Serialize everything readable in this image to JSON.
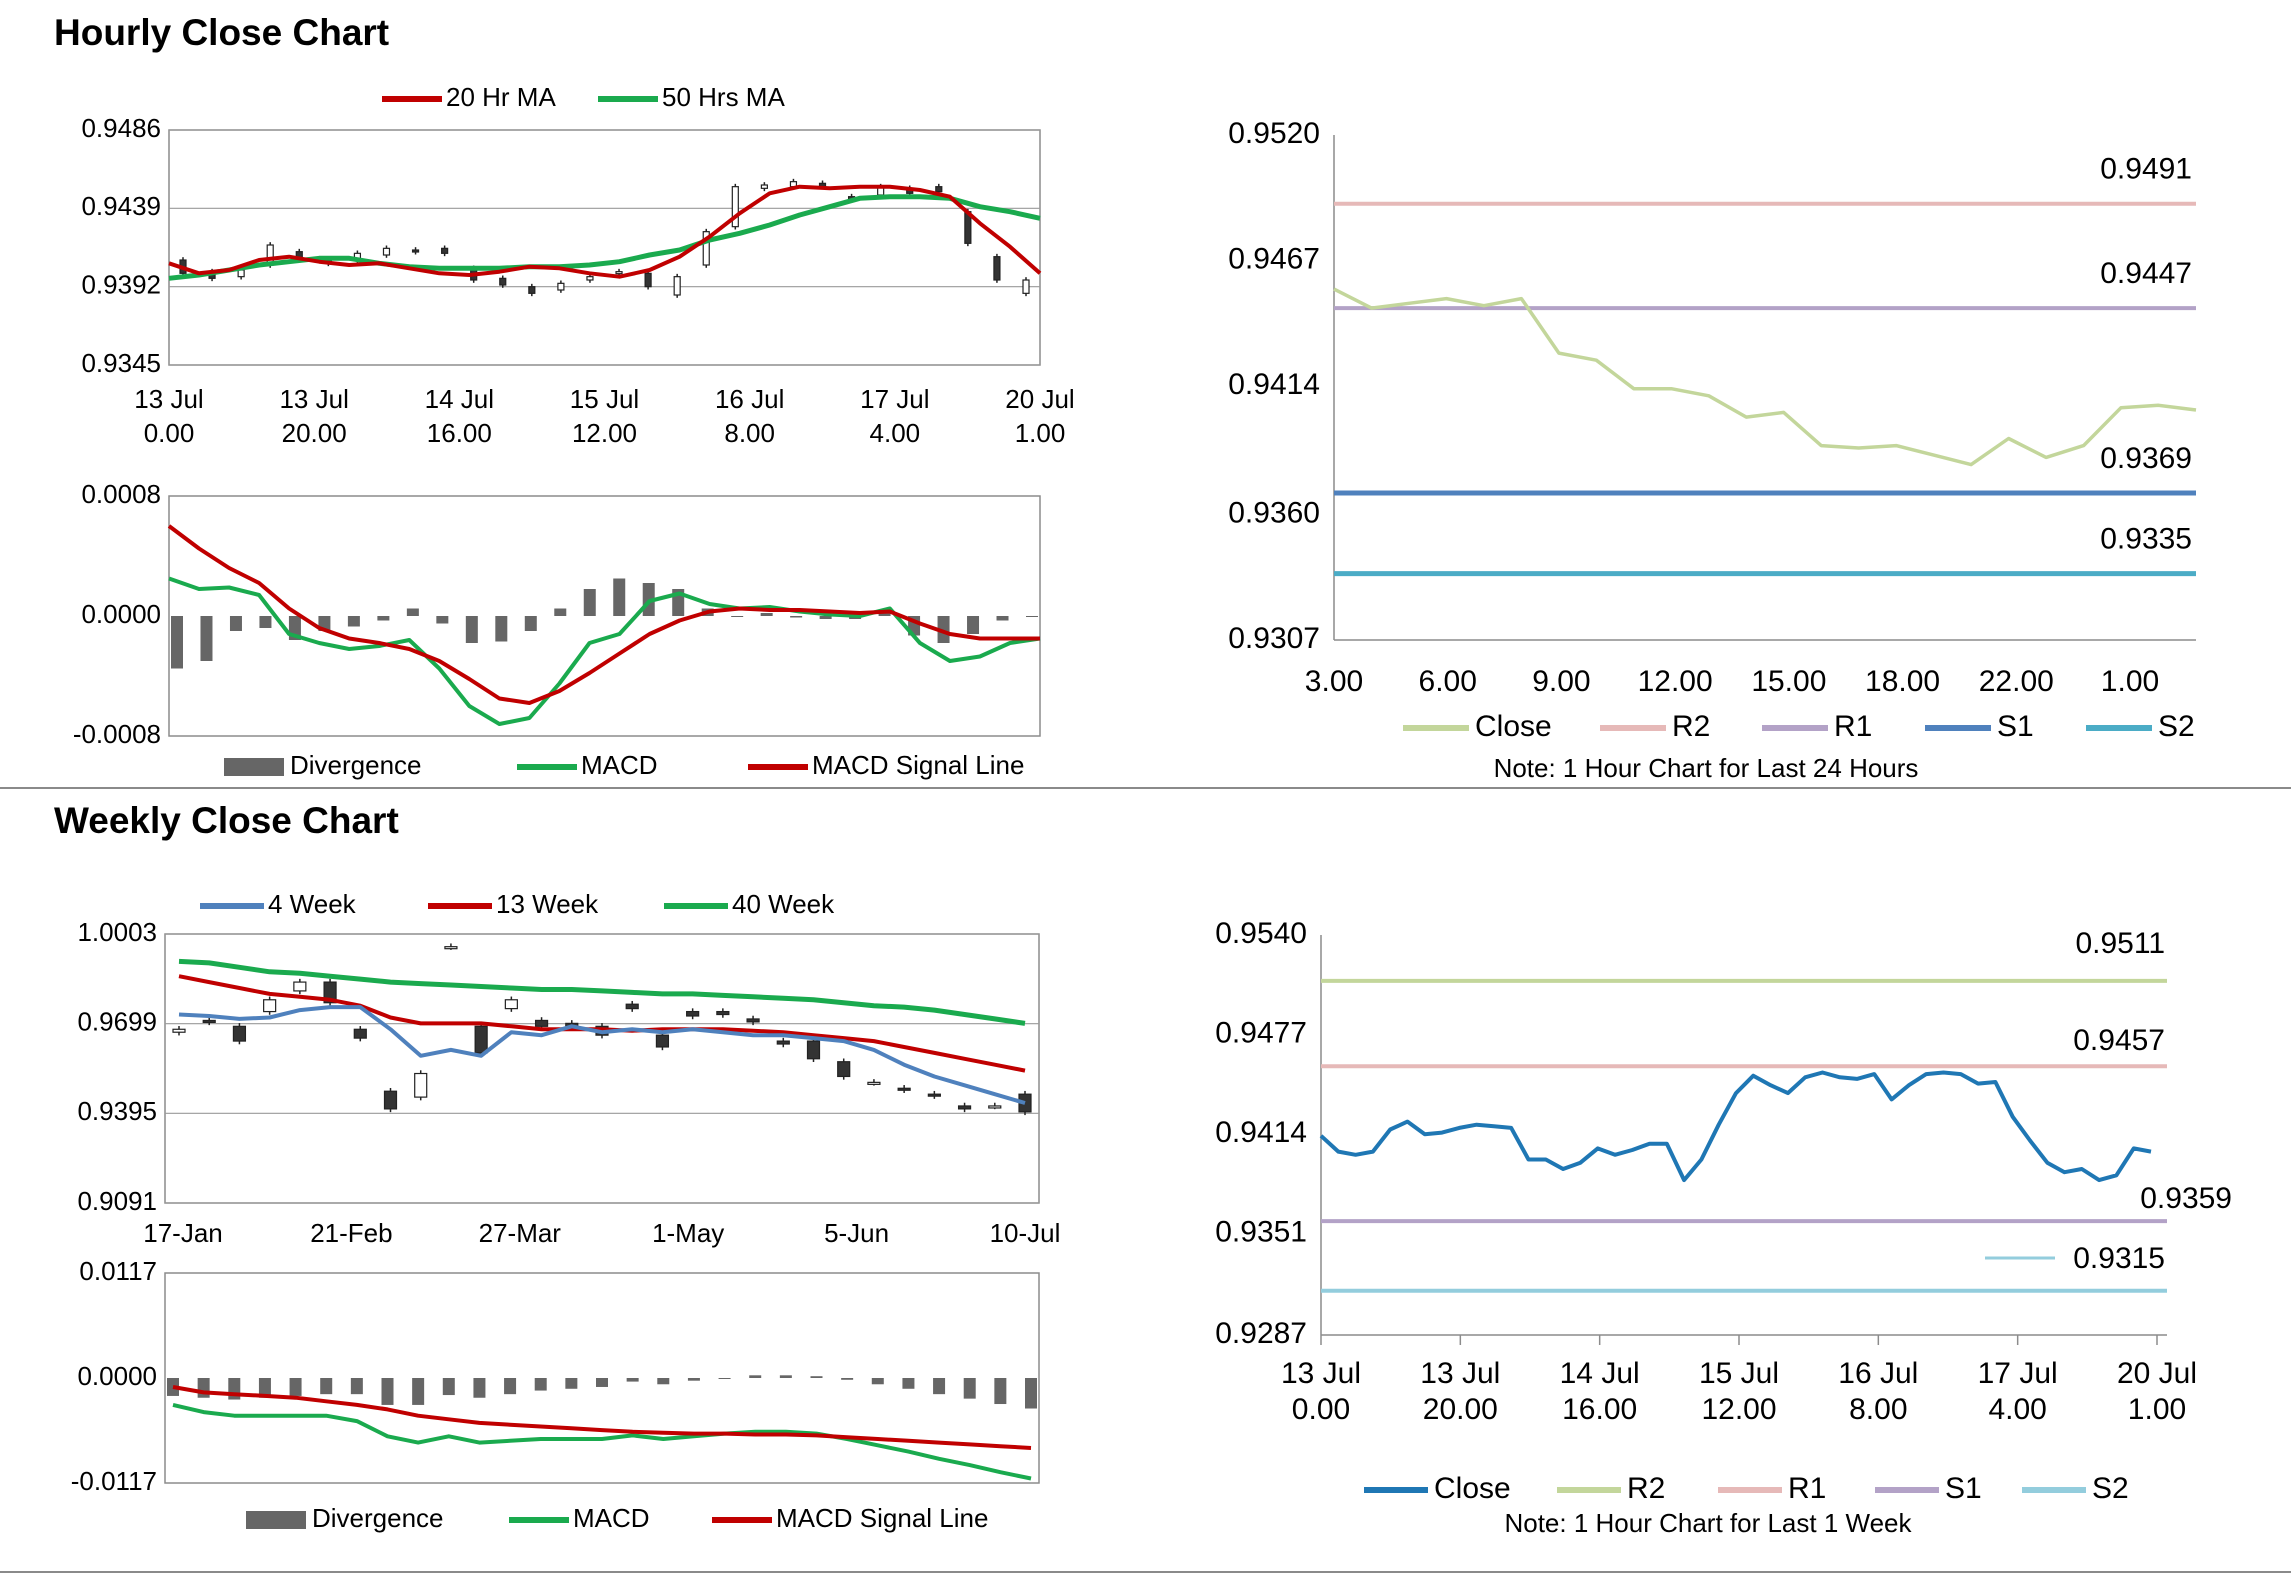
{
  "sections": {
    "hourly_title": "Hourly Close Chart",
    "weekly_title": "Weekly Close Chart"
  },
  "colors": {
    "ma20": "#c00000",
    "ma50": "#1aaa4e",
    "macd": "#1aaa4e",
    "signal": "#c00000",
    "divergence": "#666666",
    "close_light": "#c3d69b",
    "close_blue": "#1f77b4",
    "r2": "#e6b9b8",
    "r1": "#b3a2c7",
    "s1": "#4f81bd",
    "s2": "#4bacc6",
    "w_r2": "#c3d69b",
    "w_r1": "#e6b9b8",
    "w_s1": "#b3a2c7",
    "w_s2": "#93cddd",
    "wk4": "#4f81bd",
    "wk13": "#c00000",
    "wk40": "#1aaa4e"
  },
  "chart_data": [
    {
      "id": "hourly_price",
      "type": "line",
      "legend": [
        "20 Hr MA",
        "50 Hrs MA"
      ],
      "yticks": [
        "0.9486",
        "0.9439",
        "0.9392",
        "0.9345"
      ],
      "ylim": [
        0.9345,
        0.9486
      ],
      "xticks": [
        [
          "13 Jul",
          "0.00"
        ],
        [
          "13 Jul",
          "20.00"
        ],
        [
          "14 Jul",
          "16.00"
        ],
        [
          "15 Jul",
          "12.00"
        ],
        [
          "16 Jul",
          "8.00"
        ],
        [
          "17 Jul",
          "4.00"
        ],
        [
          "20 Jul",
          "1.00"
        ]
      ],
      "ma20": [
        0.9406,
        0.94,
        0.9402,
        0.9408,
        0.941,
        0.9407,
        0.9405,
        0.9406,
        0.9403,
        0.94,
        0.9399,
        0.9401,
        0.9404,
        0.9403,
        0.94,
        0.9398,
        0.9402,
        0.941,
        0.9422,
        0.9436,
        0.9448,
        0.9452,
        0.9451,
        0.9452,
        0.9452,
        0.945,
        0.9446,
        0.943,
        0.9416,
        0.94
      ],
      "ma50": [
        0.9397,
        0.9399,
        0.9402,
        0.9405,
        0.9407,
        0.9409,
        0.9409,
        0.9406,
        0.9404,
        0.9403,
        0.9403,
        0.9403,
        0.9404,
        0.9404,
        0.9405,
        0.9407,
        0.9411,
        0.9414,
        0.942,
        0.9424,
        0.9429,
        0.9435,
        0.944,
        0.9445,
        0.9446,
        0.9446,
        0.9445,
        0.944,
        0.9437,
        0.9433
      ],
      "candles": [
        [
          0.9408,
          0.94
        ],
        [
          0.9401,
          0.9397
        ],
        [
          0.9398,
          0.9402
        ],
        [
          0.9405,
          0.9417
        ],
        [
          0.9413,
          0.9409
        ],
        [
          0.9408,
          0.9406
        ],
        [
          0.9408,
          0.9412
        ],
        [
          0.9411,
          0.9415
        ],
        [
          0.9414,
          0.9413
        ],
        [
          0.9415,
          0.9412
        ],
        [
          0.9403,
          0.9396
        ],
        [
          0.9397,
          0.9393
        ],
        [
          0.9392,
          0.9388
        ],
        [
          0.939,
          0.9394
        ],
        [
          0.9396,
          0.9398
        ],
        [
          0.94,
          0.9401
        ],
        [
          0.94,
          0.9392
        ],
        [
          0.9387,
          0.9398
        ],
        [
          0.9405,
          0.9425
        ],
        [
          0.9428,
          0.9452
        ],
        [
          0.9451,
          0.9453
        ],
        [
          0.9452,
          0.9455
        ],
        [
          0.9454,
          0.9452
        ],
        [
          0.9446,
          0.9444
        ],
        [
          0.9447,
          0.9452
        ],
        [
          0.9451,
          0.9448
        ],
        [
          0.9452,
          0.9449
        ],
        [
          0.9437,
          0.9418
        ],
        [
          0.941,
          0.9396
        ],
        [
          0.9388,
          0.9396
        ]
      ]
    },
    {
      "id": "hourly_macd",
      "type": "line",
      "legend": [
        "Divergence",
        "MACD",
        "MACD Signal Line"
      ],
      "yticks": [
        "0.0008",
        "0.0000",
        "-0.0008"
      ],
      "ylim": [
        -0.0008,
        0.0008
      ],
      "macd": [
        0.00025,
        0.00018,
        0.00019,
        0.00014,
        -0.00012,
        -0.00018,
        -0.00022,
        -0.0002,
        -0.00016,
        -0.00035,
        -0.0006,
        -0.00072,
        -0.00068,
        -0.00045,
        -0.00018,
        -0.00012,
        0.0001,
        0.00015,
        8e-05,
        5e-05,
        6e-05,
        3e-05,
        1e-05,
        0.0,
        5e-05,
        -0.00018,
        -0.0003,
        -0.00027,
        -0.00018,
        -0.00015
      ],
      "signal": [
        0.0006,
        0.00045,
        0.00032,
        0.00022,
        5e-05,
        -8e-05,
        -0.00015,
        -0.00018,
        -0.00022,
        -0.0003,
        -0.00042,
        -0.00055,
        -0.00058,
        -0.0005,
        -0.00038,
        -0.00025,
        -0.00012,
        -3e-05,
        3e-05,
        5e-05,
        4e-05,
        4e-05,
        3e-05,
        2e-05,
        3e-05,
        -5e-05,
        -0.00012,
        -0.00015,
        -0.00015,
        -0.00015
      ],
      "divergence": [
        -0.00035,
        -0.0003,
        -0.0001,
        -8e-05,
        -0.00016,
        -0.0001,
        -7e-05,
        -3e-05,
        5e-05,
        -5e-05,
        -0.00018,
        -0.00017,
        -0.0001,
        5e-05,
        0.00018,
        0.00025,
        0.00022,
        0.00018,
        5e-05,
        0.0,
        2e-05,
        -1e-05,
        -2e-05,
        -2e-05,
        2e-05,
        -0.00013,
        -0.00018,
        -0.00012,
        -3e-05,
        0.0
      ]
    },
    {
      "id": "hourly_24h",
      "type": "line",
      "legend": [
        "Close",
        "R2",
        "R1",
        "S1",
        "S2"
      ],
      "yticks": [
        "0.9520",
        "0.9467",
        "0.9414",
        "0.9360",
        "0.9307"
      ],
      "ylim": [
        0.9307,
        0.952
      ],
      "xticks": [
        "3.00",
        "6.00",
        "9.00",
        "12.00",
        "15.00",
        "18.00",
        "22.00",
        "1.00"
      ],
      "close": [
        0.9455,
        0.9447,
        0.9449,
        0.9451,
        0.9448,
        0.9451,
        0.9428,
        0.9425,
        0.9413,
        0.9413,
        0.941,
        0.9401,
        0.9403,
        0.9389,
        0.9388,
        0.9389,
        0.9385,
        0.9381,
        0.9392,
        0.9384,
        0.9389,
        0.9405,
        0.9406,
        0.9404
      ],
      "levels": {
        "R2": 0.9491,
        "R1": 0.9447,
        "S1": 0.9369,
        "S2": 0.9335
      },
      "level_labels": {
        "R2": "0.9491",
        "R1": "0.9447",
        "S1": "0.9369",
        "S2": "0.9335"
      },
      "note": "Note: 1 Hour Chart for Last 24 Hours"
    },
    {
      "id": "weekly_price",
      "type": "line",
      "legend": [
        "4 Week",
        "13 Week",
        "40 Week"
      ],
      "yticks": [
        "1.0003",
        "0.9699",
        "0.9395",
        "0.9091"
      ],
      "ylim": [
        0.9091,
        1.0003
      ],
      "xticks": [
        "17-Jan",
        "21-Feb",
        "27-Mar",
        "1-May",
        "5-Jun",
        "10-Jul"
      ],
      "wk4": [
        0.973,
        0.9725,
        0.9715,
        0.972,
        0.9745,
        0.9755,
        0.9755,
        0.968,
        0.959,
        0.961,
        0.959,
        0.967,
        0.966,
        0.969,
        0.967,
        0.968,
        0.967,
        0.968,
        0.967,
        0.966,
        0.966,
        0.965,
        0.964,
        0.961,
        0.956,
        0.952,
        0.949,
        0.946,
        0.943
      ],
      "wk13": [
        0.986,
        0.984,
        0.982,
        0.98,
        0.979,
        0.978,
        0.976,
        0.972,
        0.97,
        0.97,
        0.97,
        0.969,
        0.968,
        0.968,
        0.968,
        0.9675,
        0.968,
        0.968,
        0.968,
        0.9675,
        0.967,
        0.966,
        0.965,
        0.964,
        0.962,
        0.96,
        0.958,
        0.956,
        0.954
      ],
      "wk40": [
        0.991,
        0.9905,
        0.989,
        0.9875,
        0.987,
        0.986,
        0.985,
        0.984,
        0.9835,
        0.983,
        0.9825,
        0.982,
        0.9815,
        0.9815,
        0.981,
        0.9805,
        0.98,
        0.98,
        0.9795,
        0.979,
        0.9785,
        0.978,
        0.977,
        0.976,
        0.9755,
        0.9745,
        0.973,
        0.9715,
        0.97
      ],
      "candles": [
        [
          0.967,
          0.968
        ],
        [
          0.971,
          0.9705
        ],
        [
          0.969,
          0.964
        ],
        [
          0.974,
          0.978
        ],
        [
          0.981,
          0.984
        ],
        [
          0.984,
          0.977
        ],
        [
          0.968,
          0.965
        ],
        [
          0.947,
          0.941
        ],
        [
          0.945,
          0.953
        ],
        [
          0.996,
          0.996
        ],
        [
          0.969,
          0.96
        ],
        [
          0.975,
          0.978
        ],
        [
          0.971,
          0.969
        ],
        [
          0.97,
          0.969
        ],
        [
          0.969,
          0.966
        ],
        [
          0.9765,
          0.975
        ],
        [
          0.966,
          0.962
        ],
        [
          0.974,
          0.9725
        ],
        [
          0.974,
          0.973
        ],
        [
          0.9715,
          0.9705
        ],
        [
          0.964,
          0.963
        ],
        [
          0.964,
          0.958
        ],
        [
          0.957,
          0.952
        ],
        [
          0.95,
          0.95
        ],
        [
          0.948,
          0.9475
        ],
        [
          0.946,
          0.9455
        ],
        [
          0.942,
          0.941
        ],
        [
          0.942,
          0.942
        ],
        [
          0.946,
          0.94
        ]
      ]
    },
    {
      "id": "weekly_macd",
      "type": "line",
      "legend": [
        "Divergence",
        "MACD",
        "MACD Signal Line"
      ],
      "yticks": [
        "0.0117",
        "0.0000",
        "-0.0117"
      ],
      "ylim": [
        -0.0117,
        0.0117
      ],
      "macd": [
        -0.003,
        -0.0038,
        -0.0042,
        -0.0042,
        -0.0042,
        -0.0042,
        -0.0048,
        -0.0065,
        -0.0072,
        -0.0065,
        -0.0072,
        -0.007,
        -0.0068,
        -0.0068,
        -0.0068,
        -0.0064,
        -0.0068,
        -0.0065,
        -0.0062,
        -0.006,
        -0.006,
        -0.0062,
        -0.0068,
        -0.0075,
        -0.0082,
        -0.009,
        -0.0097,
        -0.0105,
        -0.0112
      ],
      "signal": [
        -0.001,
        -0.0016,
        -0.0018,
        -0.002,
        -0.0022,
        -0.0026,
        -0.003,
        -0.0035,
        -0.0042,
        -0.0046,
        -0.005,
        -0.0052,
        -0.0054,
        -0.0056,
        -0.0058,
        -0.006,
        -0.0061,
        -0.0062,
        -0.0062,
        -0.0063,
        -0.0063,
        -0.0064,
        -0.0066,
        -0.0068,
        -0.007,
        -0.0072,
        -0.0074,
        -0.0076,
        -0.0078
      ],
      "divergence": [
        -0.002,
        -0.0022,
        -0.0024,
        -0.0022,
        -0.002,
        -0.0018,
        -0.0018,
        -0.003,
        -0.003,
        -0.0019,
        -0.0022,
        -0.0018,
        -0.0014,
        -0.0012,
        -0.001,
        -0.0004,
        -0.0007,
        -0.0003,
        0.0,
        0.0003,
        0.0003,
        0.0002,
        -0.0002,
        -0.0007,
        -0.0012,
        -0.0018,
        -0.0023,
        -0.0029,
        -0.0034
      ]
    },
    {
      "id": "weekly_1h",
      "type": "line",
      "legend": [
        "Close",
        "R2",
        "R1",
        "S1",
        "S2"
      ],
      "yticks": [
        "0.9540",
        "0.9477",
        "0.9414",
        "0.9351",
        "0.9287"
      ],
      "ylim": [
        0.9287,
        0.954
      ],
      "xticks": [
        [
          "13 Jul",
          "0.00"
        ],
        [
          "13 Jul",
          "20.00"
        ],
        [
          "14 Jul",
          "16.00"
        ],
        [
          "15 Jul",
          "12.00"
        ],
        [
          "16 Jul",
          "8.00"
        ],
        [
          "17 Jul",
          "4.00"
        ],
        [
          "20 Jul",
          "1.00"
        ]
      ],
      "close": [
        0.9413,
        0.9403,
        0.9401,
        0.9403,
        0.9417,
        0.9422,
        0.9414,
        0.9415,
        0.9418,
        0.942,
        0.9419,
        0.9418,
        0.9398,
        0.9398,
        0.9392,
        0.9396,
        0.9405,
        0.9401,
        0.9404,
        0.9408,
        0.9408,
        0.9385,
        0.9398,
        0.942,
        0.944,
        0.9451,
        0.9445,
        0.944,
        0.945,
        0.9453,
        0.945,
        0.9449,
        0.9452,
        0.9436,
        0.9445,
        0.9452,
        0.9453,
        0.9452,
        0.9446,
        0.9447,
        0.9425,
        0.941,
        0.9396,
        0.939,
        0.9392,
        0.9385,
        0.9388,
        0.9405,
        0.9403
      ],
      "levels": {
        "R2": 0.9511,
        "R1": 0.9457,
        "S1": 0.9359,
        "S2": 0.9315
      },
      "level_labels": {
        "R2": "0.9511",
        "R1": "0.9457",
        "S1": "0.9359",
        "S2": "0.9315"
      },
      "note": "Note: 1 Hour Chart for Last 1 Week"
    }
  ]
}
